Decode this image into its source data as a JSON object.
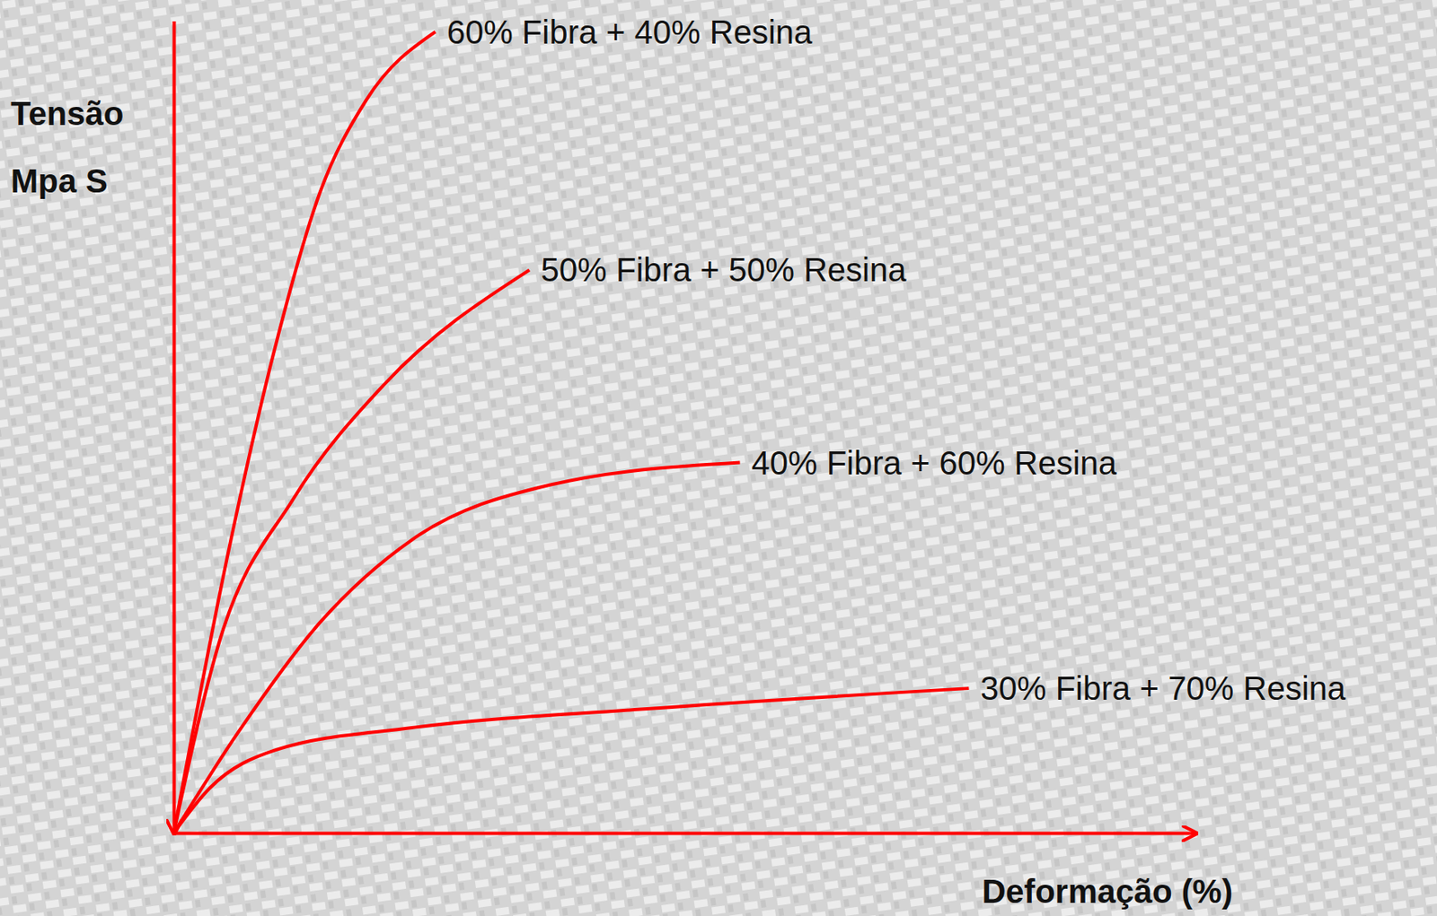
{
  "chart_data": {
    "type": "line",
    "xlabel": "Deformação (%)",
    "ylabel": [
      "Tensão",
      "Mpa S"
    ],
    "xlim": [
      0,
      100
    ],
    "ylim": [
      0,
      105
    ],
    "tick_labels": false,
    "grid": false,
    "series": [
      {
        "name": "60% Fibra + 40% Resina",
        "color": "#ff0000",
        "x": [
          0,
          5.4,
          9.9,
          14.3,
          18.8,
          25.6
        ],
        "values": [
          0,
          36.7,
          62.7,
          82.8,
          94.7,
          103.6
        ]
      },
      {
        "name": "50% Fibra + 50% Resina",
        "color": "#ff0000",
        "x": [
          0,
          4.5,
          11.7,
          20.6,
          34.8
        ],
        "values": [
          0,
          24.9,
          43.2,
          58.0,
          72.8
        ]
      },
      {
        "name": "40% Fibra + 60% Resina",
        "color": "#ff0000",
        "x": [
          0,
          6.3,
          14.3,
          23.3,
          36.8,
          55.4
        ],
        "values": [
          0,
          13.0,
          27.2,
          37.9,
          45.0,
          47.9
        ]
      },
      {
        "name": "30% Fibra + 70% Resina",
        "color": "#ff0000",
        "x": [
          0,
          3.6,
          9.9,
          23.3,
          45.7,
          77.8
        ],
        "values": [
          0,
          5.9,
          10.7,
          13.6,
          16.0,
          18.7
        ]
      }
    ]
  }
}
